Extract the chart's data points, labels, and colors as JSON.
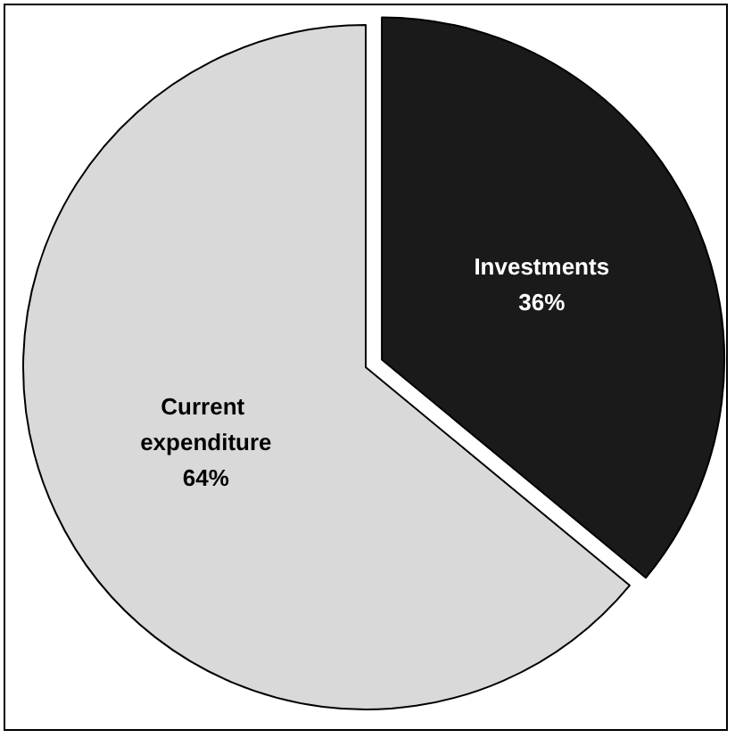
{
  "chart_data": {
    "type": "pie",
    "categories": [
      "Investments",
      "Current expenditure"
    ],
    "values": [
      36,
      64
    ],
    "colors": [
      "#1a1a1a",
      "#d9d9d9"
    ],
    "value_labels": [
      "36%",
      "64%"
    ],
    "legend": false
  }
}
